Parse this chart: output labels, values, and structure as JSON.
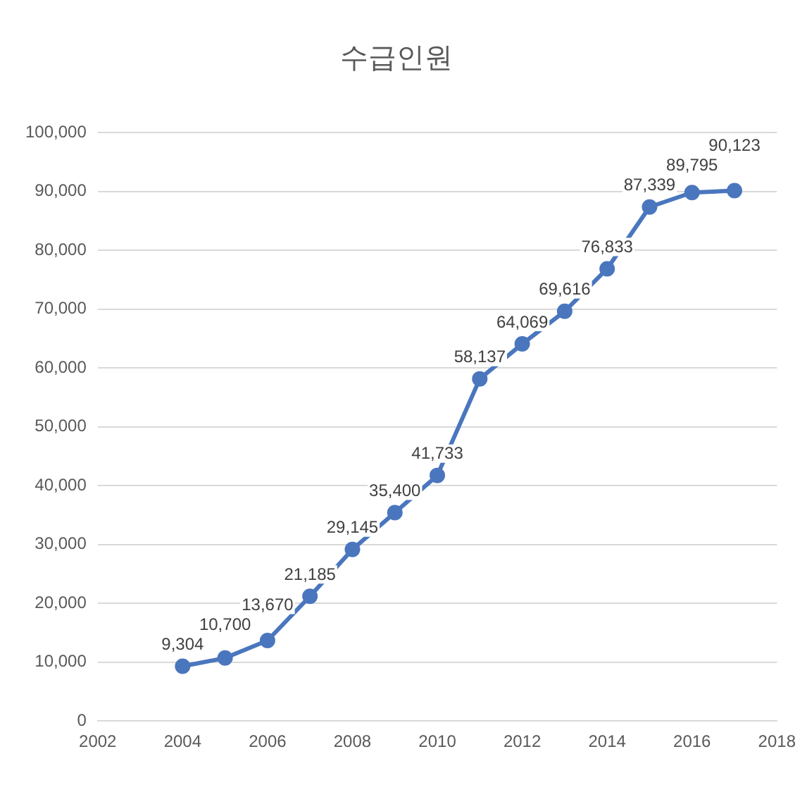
{
  "chart_data": {
    "type": "line",
    "title": "수급인원",
    "x": [
      2004,
      2005,
      2006,
      2007,
      2008,
      2009,
      2010,
      2011,
      2012,
      2013,
      2014,
      2015,
      2016,
      2017
    ],
    "series": [
      {
        "color": "#4a76be",
        "values": [
          9304,
          10700,
          13670,
          21185,
          29145,
          35400,
          41733,
          58137,
          64069,
          69616,
          76833,
          87339,
          89795,
          90123
        ],
        "value_labels": [
          "9,304",
          "10,700",
          "13,670",
          "21,185",
          "29,145",
          "35,400",
          "41,733",
          "58,137",
          "64,069",
          "69,616",
          "76,833",
          "87,339",
          "89,795",
          "90,123"
        ]
      }
    ],
    "xlim": [
      2002,
      2018
    ],
    "xticks": [
      2002,
      2004,
      2006,
      2008,
      2010,
      2012,
      2014,
      2016,
      2018
    ],
    "ylim": [
      0,
      100000
    ],
    "yticks": [
      0,
      {
        "value": 10000,
        "label": "10,000"
      },
      {
        "value": 20000,
        "label": "20,000"
      },
      {
        "value": 30000,
        "label": "30,000"
      },
      {
        "value": 40000,
        "label": "40,000"
      },
      {
        "value": 50000,
        "label": "50,000"
      },
      {
        "value": 60000,
        "label": "60,000"
      },
      {
        "value": 70000,
        "label": "70,000"
      },
      {
        "value": 80000,
        "label": "80,000"
      },
      {
        "value": 90000,
        "label": "90,000"
      },
      {
        "value": 100000,
        "label": "100,000"
      }
    ],
    "grid": "y",
    "legend": false,
    "marker": "circle",
    "line_style": "solid"
  }
}
